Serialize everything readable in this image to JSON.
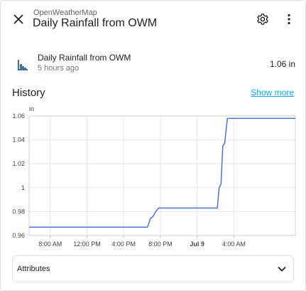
{
  "header": {
    "subtitle": "OpenWeatherMap",
    "title": "Daily Rainfall from OWM",
    "close_icon": "close-icon",
    "settings_icon": "gear-icon",
    "menu_icon": "more-vertical-icon"
  },
  "entity": {
    "icon": "bar-chart-icon",
    "name": "Daily Rainfall from OWM",
    "last_changed": "5 hours ago",
    "state": "1.06 in"
  },
  "history": {
    "title": "History",
    "show_more": "Show more"
  },
  "chart_data": {
    "type": "line",
    "unit": "in",
    "ylim": [
      0.96,
      1.06
    ],
    "y_ticks": [
      "1.06",
      "1.04",
      "1.02",
      "1",
      "0.98",
      "0.96"
    ],
    "x_ticks": [
      "8:00 AM",
      "12:00 PM",
      "4:00 PM",
      "8:00 PM",
      "Jul 9",
      "4:00 AM"
    ],
    "x_tick_bold": [
      false,
      false,
      false,
      false,
      true,
      false
    ],
    "grid": true,
    "line_color": "#4a74c9",
    "series": [
      {
        "x_hours": [
          5.7,
          18.6,
          18.9,
          19.2,
          19.5,
          19.8,
          26.2,
          26.4,
          26.6,
          26.8,
          27.0,
          27.3,
          34.7
        ],
        "values": [
          0.967,
          0.967,
          0.974,
          0.976,
          0.98,
          0.983,
          0.983,
          1.0,
          1.003,
          1.035,
          1.037,
          1.058,
          1.058
        ]
      }
    ]
  },
  "attributes": {
    "label": "Attributes",
    "chevron_icon": "chevron-down-icon"
  }
}
